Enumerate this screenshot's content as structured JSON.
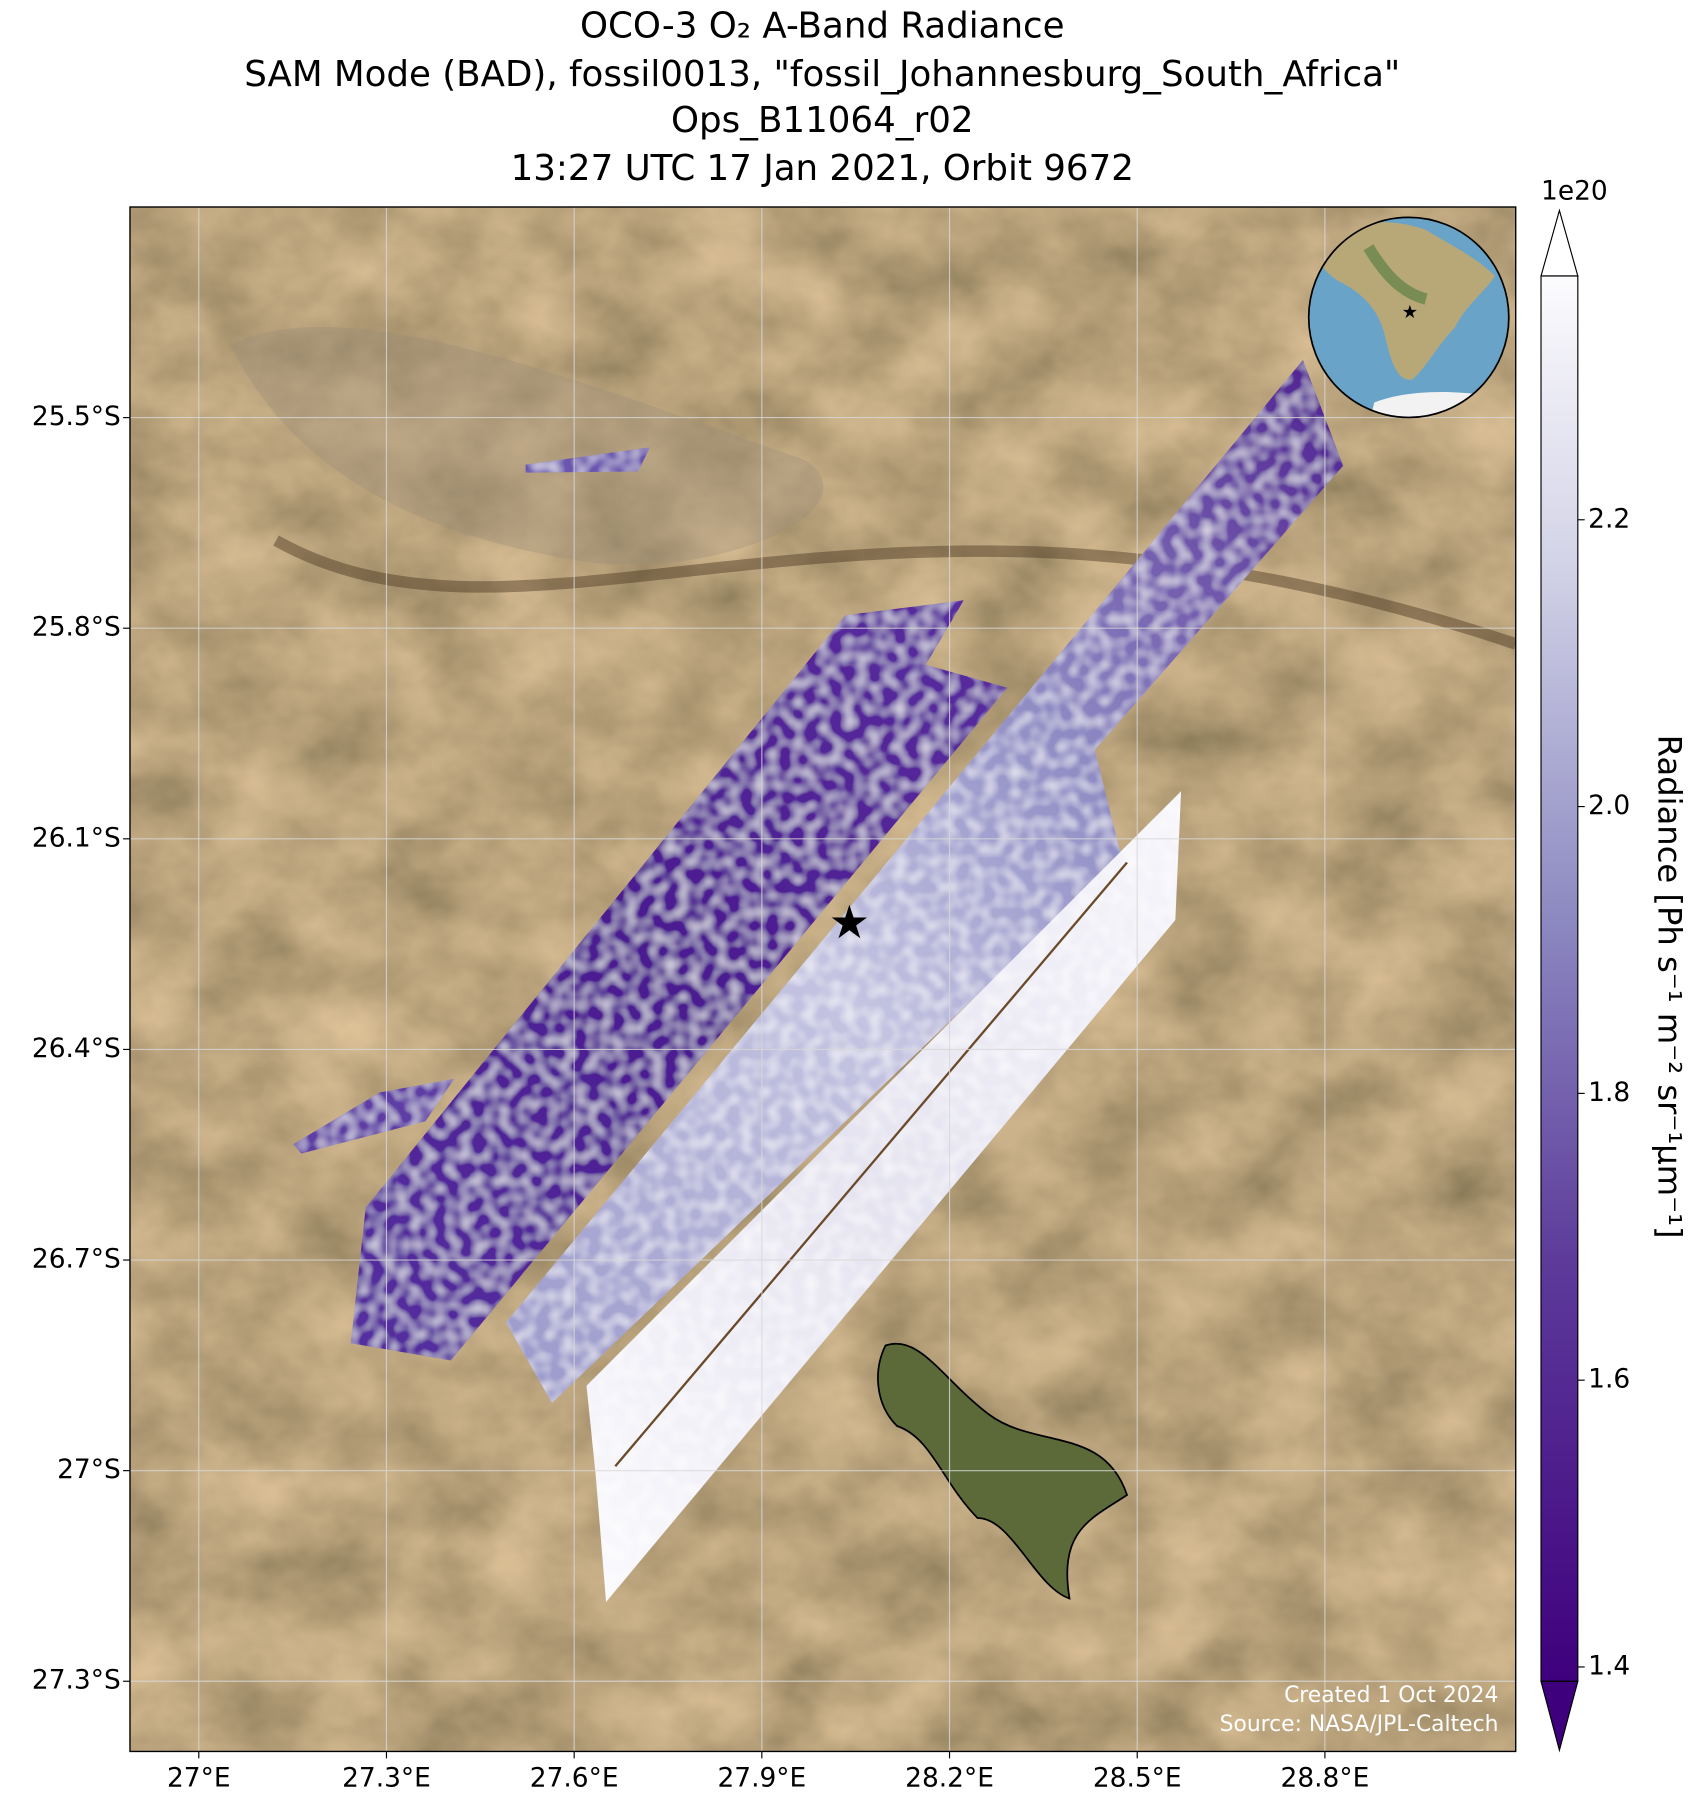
{
  "map": {
    "title": [
      "OCO-3 O₂ A-Band Radiance",
      "SAM Mode (BAD), fossil0013, \"fossil_Johannesburg_South_Africa\"",
      "Ops_B11064_r02",
      "13:27 UTC 17 Jan 2021, Orbit 9672"
    ],
    "xlim": [
      26.89,
      29.105
    ],
    "ylim": [
      -27.4,
      -25.2
    ],
    "xticks": [
      {
        "value": 27,
        "label": "27°E"
      },
      {
        "value": 27.3,
        "label": "27.3°E"
      },
      {
        "value": 27.6,
        "label": "27.6°E"
      },
      {
        "value": 27.9,
        "label": "27.9°E"
      },
      {
        "value": 28.2,
        "label": "28.2°E"
      },
      {
        "value": 28.5,
        "label": "28.5°E"
      },
      {
        "value": 28.8,
        "label": "28.8°E"
      }
    ],
    "yticks": [
      {
        "value": -25.5,
        "label": "25.5°S"
      },
      {
        "value": -25.8,
        "label": "25.8°S"
      },
      {
        "value": -26.1,
        "label": "26.1°S"
      },
      {
        "value": -26.4,
        "label": "26.4°S"
      },
      {
        "value": -26.7,
        "label": "26.7°S"
      },
      {
        "value": -27,
        "label": "27°S"
      },
      {
        "value": -27.3,
        "label": "27.3°S"
      }
    ],
    "grid": true,
    "target": {
      "lon": 28.04,
      "lat": -26.22,
      "color": "#ff0000"
    },
    "colorbar": {
      "label": "Radiance [Ph s⁻¹ m⁻² sr⁻¹μm⁻¹]",
      "exponent": "1e20",
      "lim": [
        1.39,
        2.37
      ],
      "ticks": [
        1.4,
        1.6,
        1.8,
        {
          "value": 2.0,
          "label": "2.0"
        },
        2.2
      ]
    },
    "credits": [
      "Created 1 Oct 2024",
      "Source: NASA/JPL-Caltech"
    ]
  }
}
